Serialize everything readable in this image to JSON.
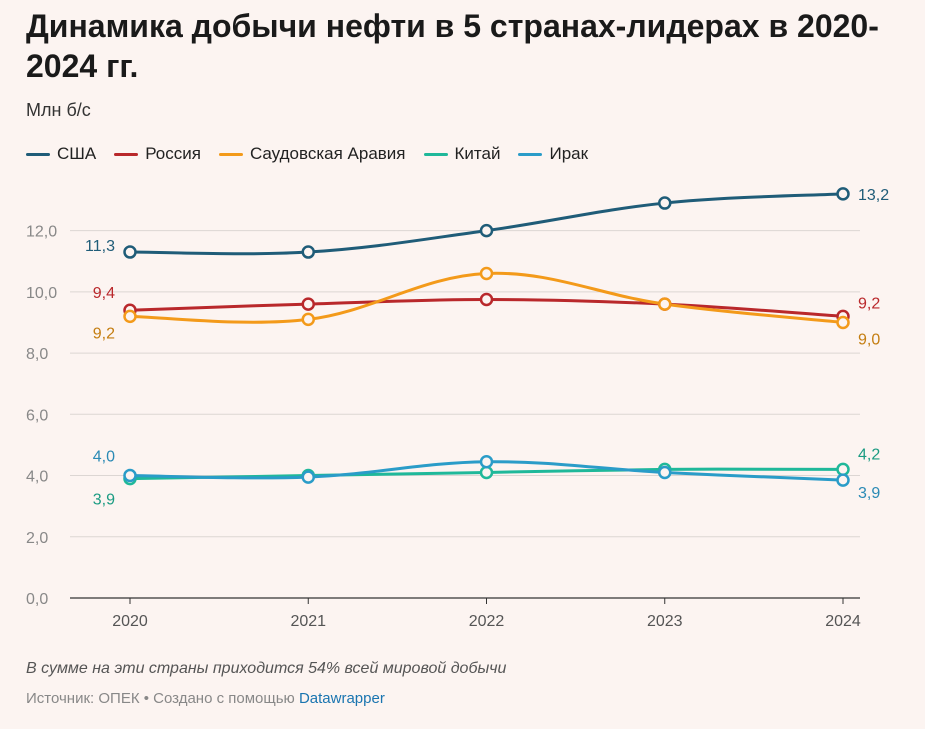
{
  "chart_data": {
    "type": "line",
    "title": "Динамика добычи нефти в 5 странах-лидерах в 2020-2024 гг.",
    "ylabel": "Млн б/с",
    "x": [
      "2020",
      "2021",
      "2022",
      "2023",
      "2024"
    ],
    "ylim": [
      0,
      13
    ],
    "yticks": [
      0,
      2,
      4,
      6,
      8,
      10,
      12
    ],
    "ytick_labels": [
      "0,0",
      "2,0",
      "4,0",
      "6,0",
      "8,0",
      "10,0",
      "12,0"
    ],
    "grid": true,
    "legend_position": "top-left",
    "series": [
      {
        "name": "США",
        "color": "#1f5c78",
        "values": [
          11.3,
          11.3,
          12.0,
          12.9,
          13.2
        ],
        "labels": {
          "start": "11,3",
          "end": "13,2"
        }
      },
      {
        "name": "Россия",
        "color": "#b9282b",
        "values": [
          9.4,
          9.6,
          9.75,
          9.6,
          9.2
        ],
        "labels": {
          "start": "9,4",
          "end": "9,2"
        }
      },
      {
        "name": "Саудовская Аравия",
        "color": "#f39a1a",
        "values": [
          9.2,
          9.1,
          10.6,
          9.6,
          9.0
        ],
        "labels": {
          "start": "9,2",
          "end": "9,0"
        }
      },
      {
        "name": "Китай",
        "color": "#1fb89a",
        "values": [
          3.9,
          4.0,
          4.1,
          4.2,
          4.2
        ],
        "labels": {
          "start": "3,9",
          "end": "4,2"
        }
      },
      {
        "name": "Ирак",
        "color": "#2a9cc8",
        "values": [
          4.0,
          3.95,
          4.45,
          4.1,
          3.85
        ],
        "labels": {
          "start": "4,0",
          "end": "3,9"
        }
      }
    ]
  },
  "header": {
    "title": "Динамика добычи нефти в 5 странах-лидерах в 2020-2024 гг.",
    "unit": "Млн б/с"
  },
  "footer": {
    "note": "В сумме на эти страны приходится 54% всей мировой добычи",
    "source_prefix": "Источник: ОПЕК • Создано с помощью ",
    "source_link": "Datawrapper"
  }
}
